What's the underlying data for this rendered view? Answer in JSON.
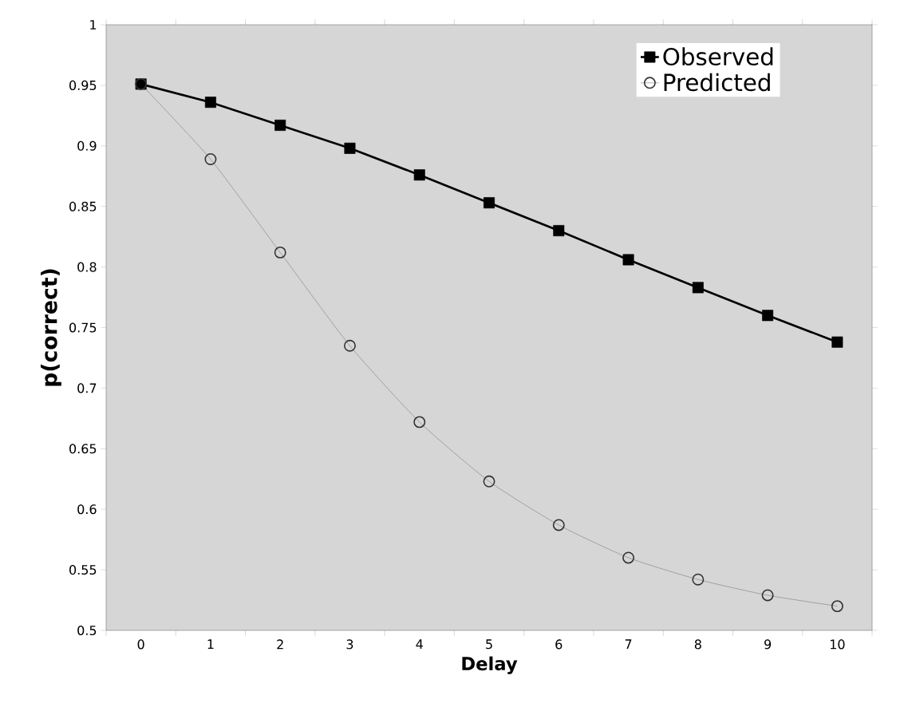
{
  "chart_data": {
    "type": "line",
    "xlabel": "Delay",
    "ylabel": "p(correct)",
    "categories": [
      "0",
      "1",
      "2",
      "3",
      "4",
      "5",
      "6",
      "7",
      "8",
      "9",
      "10"
    ],
    "ylim": [
      0.5,
      1
    ],
    "yticks": [
      0.5,
      0.55,
      0.6,
      0.65,
      0.7,
      0.75,
      0.8,
      0.85,
      0.9,
      0.95,
      1
    ],
    "legend": "top right",
    "series": [
      {
        "name": "Observed",
        "color": "#000000",
        "marker": "square",
        "values": [
          0.951,
          0.936,
          0.917,
          0.898,
          0.876,
          0.853,
          0.83,
          0.806,
          0.783,
          0.76,
          0.738
        ]
      },
      {
        "name": "Predicted",
        "color": "#333333",
        "marker": "circle",
        "values": [
          0.951,
          0.889,
          0.812,
          0.735,
          0.672,
          0.623,
          0.587,
          0.56,
          0.542,
          0.529,
          0.52
        ]
      }
    ]
  }
}
